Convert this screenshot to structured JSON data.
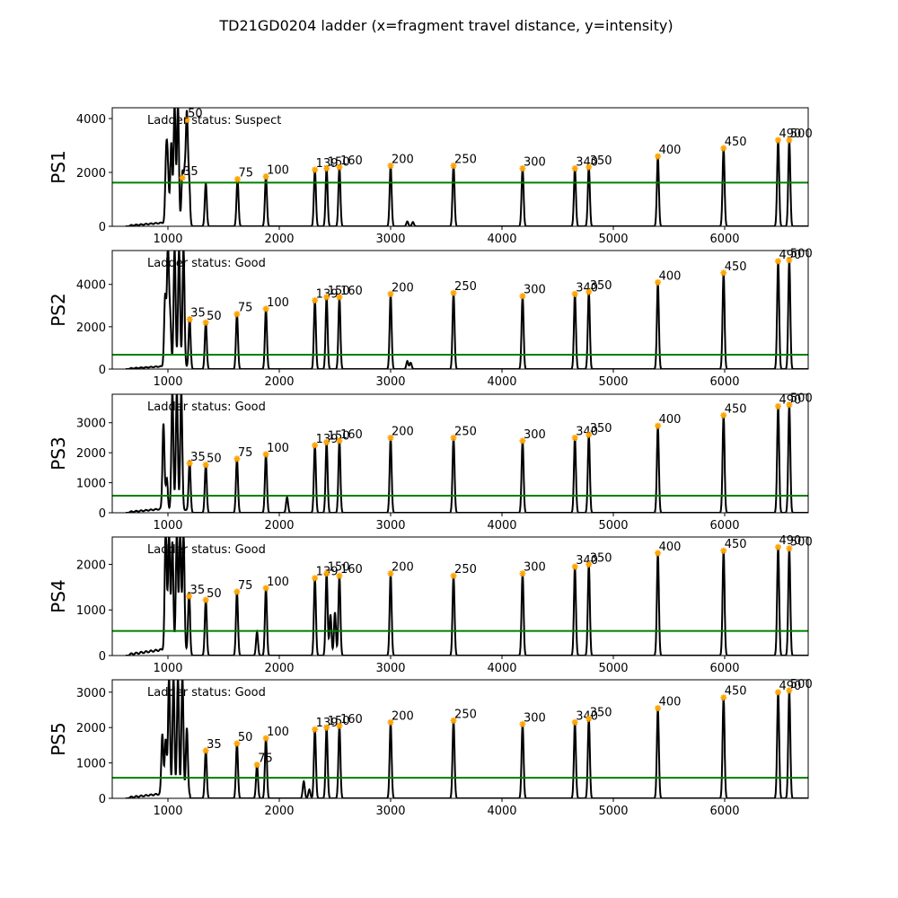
{
  "chart_data": {
    "type": "line",
    "title": "TD21GD0204 ladder (x=fragment travel distance, y=intensity)",
    "xlim": [
      500,
      6750
    ],
    "x_ticks": [
      1000,
      2000,
      3000,
      4000,
      5000,
      6000
    ],
    "colors": {
      "trace": "#000000",
      "threshold": "#008000",
      "marker": "#FFA500"
    },
    "panels": [
      {
        "ylabel": "PS1",
        "status": "Ladder status: Suspect",
        "ylim": [
          0,
          4400
        ],
        "y_ticks": [
          0,
          2000,
          4000
        ],
        "threshold": 1620,
        "peaks": [
          {
            "label": "35",
            "x": 1130,
            "y": 1800
          },
          {
            "label": "50",
            "x": 1170,
            "y": 3950
          },
          {
            "label": "75",
            "x": 1625,
            "y": 1750
          },
          {
            "label": "100",
            "x": 1880,
            "y": 1850
          },
          {
            "label": "139",
            "x": 2320,
            "y": 2100
          },
          {
            "label": "150",
            "x": 2425,
            "y": 2150
          },
          {
            "label": "160",
            "x": 2540,
            "y": 2200
          },
          {
            "label": "200",
            "x": 3000,
            "y": 2250
          },
          {
            "label": "250",
            "x": 3565,
            "y": 2250
          },
          {
            "label": "300",
            "x": 4185,
            "y": 2150
          },
          {
            "label": "340",
            "x": 4655,
            "y": 2150
          },
          {
            "label": "350",
            "x": 4780,
            "y": 2200
          },
          {
            "label": "400",
            "x": 5400,
            "y": 2600
          },
          {
            "label": "450",
            "x": 5990,
            "y": 2900
          },
          {
            "label": "490",
            "x": 6480,
            "y": 3200
          },
          {
            "label": "500",
            "x": 6580,
            "y": 3200
          }
        ],
        "extra_peaks": [
          {
            "x": 985,
            "y": 2450
          },
          {
            "x": 1000,
            "y": 1800
          },
          {
            "x": 1030,
            "y": 3000
          },
          {
            "x": 1060,
            "y": 4400
          },
          {
            "x": 1090,
            "y": 4400
          },
          {
            "x": 1150,
            "y": 1700
          },
          {
            "x": 1190,
            "y": 1500
          },
          {
            "x": 1340,
            "y": 1600
          },
          {
            "x": 3150,
            "y": 180
          },
          {
            "x": 3200,
            "y": 160
          }
        ]
      },
      {
        "ylabel": "PS2",
        "status": "Ladder status: Good",
        "ylim": [
          0,
          5600
        ],
        "y_ticks": [
          0,
          2000,
          4000
        ],
        "threshold": 680,
        "peaks": [
          {
            "label": "35",
            "x": 1195,
            "y": 2350
          },
          {
            "label": "50",
            "x": 1340,
            "y": 2200
          },
          {
            "label": "75",
            "x": 1620,
            "y": 2600
          },
          {
            "label": "100",
            "x": 1880,
            "y": 2850
          },
          {
            "label": "139",
            "x": 2320,
            "y": 3250
          },
          {
            "label": "150",
            "x": 2425,
            "y": 3400
          },
          {
            "label": "160",
            "x": 2540,
            "y": 3400
          },
          {
            "label": "200",
            "x": 3000,
            "y": 3550
          },
          {
            "label": "250",
            "x": 3565,
            "y": 3600
          },
          {
            "label": "300",
            "x": 4185,
            "y": 3450
          },
          {
            "label": "340",
            "x": 4655,
            "y": 3550
          },
          {
            "label": "350",
            "x": 4780,
            "y": 3650
          },
          {
            "label": "400",
            "x": 5400,
            "y": 4100
          },
          {
            "label": "450",
            "x": 5990,
            "y": 4550
          },
          {
            "label": "490",
            "x": 6480,
            "y": 5100
          },
          {
            "label": "500",
            "x": 6580,
            "y": 5150
          }
        ],
        "extra_peaks": [
          {
            "x": 975,
            "y": 3300
          },
          {
            "x": 1000,
            "y": 5600
          },
          {
            "x": 1020,
            "y": 2300
          },
          {
            "x": 1060,
            "y": 5600
          },
          {
            "x": 1100,
            "y": 5600
          },
          {
            "x": 1140,
            "y": 5600
          },
          {
            "x": 3150,
            "y": 380
          },
          {
            "x": 3180,
            "y": 300
          }
        ]
      },
      {
        "ylabel": "PS3",
        "status": "Ladder status: Good",
        "ylim": [
          0,
          3950
        ],
        "y_ticks": [
          0,
          1000,
          2000,
          3000
        ],
        "threshold": 570,
        "peaks": [
          {
            "label": "35",
            "x": 1195,
            "y": 1650
          },
          {
            "label": "50",
            "x": 1340,
            "y": 1600
          },
          {
            "label": "75",
            "x": 1620,
            "y": 1800
          },
          {
            "label": "100",
            "x": 1880,
            "y": 1950
          },
          {
            "label": "139",
            "x": 2320,
            "y": 2250
          },
          {
            "label": "150",
            "x": 2425,
            "y": 2350
          },
          {
            "label": "160",
            "x": 2540,
            "y": 2400
          },
          {
            "label": "200",
            "x": 3000,
            "y": 2500
          },
          {
            "label": "250",
            "x": 3565,
            "y": 2500
          },
          {
            "label": "300",
            "x": 4185,
            "y": 2400
          },
          {
            "label": "340",
            "x": 4655,
            "y": 2500
          },
          {
            "label": "350",
            "x": 4780,
            "y": 2600
          },
          {
            "label": "400",
            "x": 5400,
            "y": 2900
          },
          {
            "label": "450",
            "x": 5990,
            "y": 3250
          },
          {
            "label": "490",
            "x": 6480,
            "y": 3550
          },
          {
            "label": "500",
            "x": 6580,
            "y": 3600
          }
        ],
        "extra_peaks": [
          {
            "x": 960,
            "y": 2850
          },
          {
            "x": 990,
            "y": 1000
          },
          {
            "x": 1040,
            "y": 3950
          },
          {
            "x": 1080,
            "y": 3950
          },
          {
            "x": 1120,
            "y": 3950
          },
          {
            "x": 2070,
            "y": 520
          }
        ]
      },
      {
        "ylabel": "PS4",
        "status": "Ladder status: Good",
        "ylim": [
          0,
          2600
        ],
        "y_ticks": [
          0,
          1000,
          2000
        ],
        "threshold": 540,
        "peaks": [
          {
            "label": "35",
            "x": 1190,
            "y": 1300
          },
          {
            "label": "50",
            "x": 1340,
            "y": 1220
          },
          {
            "label": "75",
            "x": 1620,
            "y": 1400
          },
          {
            "label": "100",
            "x": 1880,
            "y": 1480
          },
          {
            "label": "139",
            "x": 2320,
            "y": 1700
          },
          {
            "label": "150",
            "x": 2425,
            "y": 1800
          },
          {
            "label": "160",
            "x": 2540,
            "y": 1750
          },
          {
            "label": "200",
            "x": 3000,
            "y": 1800
          },
          {
            "label": "250",
            "x": 3565,
            "y": 1750
          },
          {
            "label": "300",
            "x": 4185,
            "y": 1800
          },
          {
            "label": "340",
            "x": 4655,
            "y": 1950
          },
          {
            "label": "350",
            "x": 4780,
            "y": 2000
          },
          {
            "label": "400",
            "x": 5400,
            "y": 2250
          },
          {
            "label": "450",
            "x": 5990,
            "y": 2300
          },
          {
            "label": "490",
            "x": 6480,
            "y": 2380
          },
          {
            "label": "500",
            "x": 6580,
            "y": 2350
          }
        ],
        "extra_peaks": [
          {
            "x": 980,
            "y": 2600
          },
          {
            "x": 1010,
            "y": 2600
          },
          {
            "x": 1040,
            "y": 2400
          },
          {
            "x": 1080,
            "y": 2600
          },
          {
            "x": 1110,
            "y": 2600
          },
          {
            "x": 1140,
            "y": 2600
          },
          {
            "x": 1800,
            "y": 520
          },
          {
            "x": 2460,
            "y": 900
          },
          {
            "x": 2500,
            "y": 950
          }
        ]
      },
      {
        "ylabel": "PS5",
        "status": "Ladder status: Good",
        "ylim": [
          0,
          3350
        ],
        "y_ticks": [
          0,
          1000,
          2000,
          3000
        ],
        "threshold": 580,
        "peaks": [
          {
            "label": "35",
            "x": 1340,
            "y": 1350
          },
          {
            "label": "50",
            "x": 1620,
            "y": 1550
          },
          {
            "label": "75",
            "x": 1800,
            "y": 950
          },
          {
            "label": "100",
            "x": 1880,
            "y": 1700
          },
          {
            "label": "139",
            "x": 2320,
            "y": 1950
          },
          {
            "label": "150",
            "x": 2425,
            "y": 2000
          },
          {
            "label": "160",
            "x": 2540,
            "y": 2050
          },
          {
            "label": "200",
            "x": 3000,
            "y": 2150
          },
          {
            "label": "250",
            "x": 3565,
            "y": 2200
          },
          {
            "label": "300",
            "x": 4185,
            "y": 2100
          },
          {
            "label": "340",
            "x": 4655,
            "y": 2150
          },
          {
            "label": "350",
            "x": 4780,
            "y": 2250
          },
          {
            "label": "400",
            "x": 5400,
            "y": 2550
          },
          {
            "label": "450",
            "x": 5990,
            "y": 2850
          },
          {
            "label": "490",
            "x": 6480,
            "y": 3000
          },
          {
            "label": "500",
            "x": 6580,
            "y": 3050
          }
        ],
        "extra_peaks": [
          {
            "x": 950,
            "y": 1700
          },
          {
            "x": 980,
            "y": 1500
          },
          {
            "x": 1010,
            "y": 3350
          },
          {
            "x": 1050,
            "y": 3350
          },
          {
            "x": 1090,
            "y": 3350
          },
          {
            "x": 1130,
            "y": 3350
          },
          {
            "x": 1170,
            "y": 1900
          },
          {
            "x": 2220,
            "y": 480
          },
          {
            "x": 2270,
            "y": 250
          }
        ]
      }
    ]
  }
}
